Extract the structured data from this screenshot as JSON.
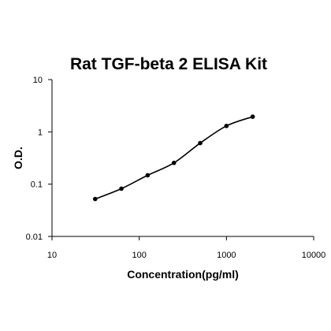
{
  "chart_data": {
    "type": "scatter",
    "title": "Rat TGF-beta 2 ELISA Kit",
    "xlabel": "Concentration(pg/ml)",
    "ylabel": "O.D.",
    "x_scale": "log",
    "y_scale": "log",
    "xlim": [
      10,
      10000
    ],
    "ylim": [
      0.01,
      10
    ],
    "x_ticks": [
      "10",
      "100",
      "1000",
      "10000"
    ],
    "y_ticks": [
      "10",
      "1",
      "0.1",
      "0.01"
    ],
    "grid": false,
    "series": [
      {
        "x": [
          31.25,
          62.5,
          125,
          250,
          500,
          1000,
          2000
        ],
        "y": [
          0.052,
          0.082,
          0.148,
          0.255,
          0.61,
          1.3,
          1.95
        ],
        "marker": "circle",
        "fit_line": true,
        "color": "#000000"
      }
    ]
  }
}
